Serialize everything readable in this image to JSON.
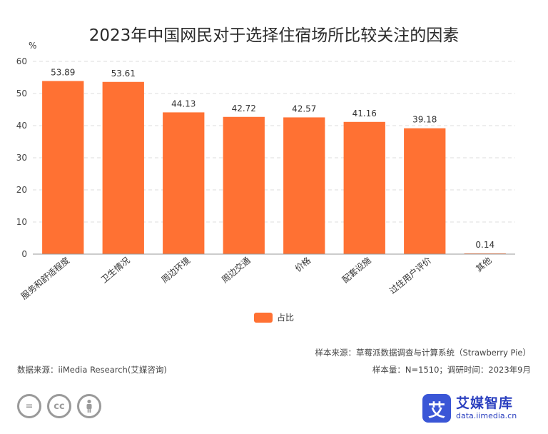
{
  "title": "2023年中国网民对于选择住宿场所比较关注的因素",
  "colors": {
    "bar": "#ff7133",
    "grid": "#dddddd",
    "axis": "#999999",
    "brand": "#3a56d6"
  },
  "chart_data": {
    "type": "bar",
    "unit_label": "%",
    "categories": [
      "服务和舒适程度",
      "卫生情况",
      "周边环境",
      "周边交通",
      "价格",
      "配套设施",
      "过往用户评价",
      "其他"
    ],
    "series": [
      {
        "name": "占比",
        "values": [
          53.89,
          53.61,
          44.13,
          42.72,
          42.57,
          41.16,
          39.18,
          0.14
        ]
      }
    ],
    "value_labels": [
      "53.89",
      "53.61",
      "44.13",
      "42.72",
      "42.57",
      "41.16",
      "39.18",
      "0.14"
    ],
    "ylim": [
      0,
      60
    ],
    "yticks": [
      0,
      10,
      20,
      30,
      40,
      50,
      60
    ],
    "grid": true,
    "legend_position": "bottom-center"
  },
  "legend": {
    "label": "占比"
  },
  "notes": {
    "source_sample": "样本来源：草莓派数据调查与计算系统（Strawberry Pie）",
    "sample_size": "样本量：N=1510；调研时间：2023年9月",
    "data_source": "数据来源：iiMedia Research(艾媒咨询)"
  },
  "license_icons": [
    "=",
    "cc",
    "person-icon"
  ],
  "brand": {
    "logo_char": "艾",
    "name": "艾媒智库",
    "url": "data.iimedia.cn"
  }
}
